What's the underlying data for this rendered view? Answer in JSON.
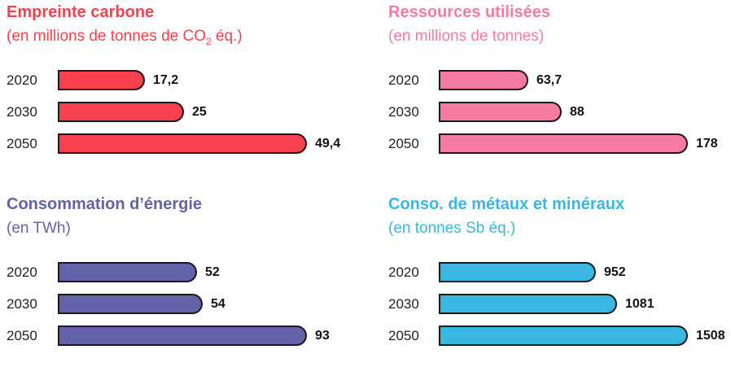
{
  "chart_data": [
    {
      "type": "bar",
      "orientation": "horizontal",
      "title": "Empreinte carbone",
      "subtitle_prefix": "(en millions de tonnes de CO",
      "subtitle_sub": "2",
      "subtitle_suffix": " éq.)",
      "color": "#f7414f",
      "categories": [
        "2020",
        "2030",
        "2050"
      ],
      "values": [
        17.2,
        25,
        49.4
      ],
      "value_labels": [
        "17,2",
        "25",
        "49,4"
      ]
    },
    {
      "type": "bar",
      "orientation": "horizontal",
      "title": "Ressources utilisées",
      "subtitle": "(en millions de tonnes)",
      "color": "#f57ba2",
      "categories": [
        "2020",
        "2030",
        "2050"
      ],
      "values": [
        63.7,
        88,
        178
      ],
      "value_labels": [
        "63,7",
        "88",
        "178"
      ]
    },
    {
      "type": "bar",
      "orientation": "horizontal",
      "title": "Consommation d’énergie",
      "subtitle": "(en TWh)",
      "color": "#6462a8",
      "categories": [
        "2020",
        "2030",
        "2050"
      ],
      "values": [
        52,
        54,
        93
      ],
      "value_labels": [
        "52",
        "54",
        "93"
      ]
    },
    {
      "type": "bar",
      "orientation": "horizontal",
      "title": "Conso. de métaux et minéraux",
      "subtitle": "(en tonnes Sb éq.)",
      "color": "#39b7e2",
      "categories": [
        "2020",
        "2030",
        "2050"
      ],
      "values": [
        952,
        1081,
        1508
      ],
      "value_labels": [
        "952",
        "1081",
        "1508"
      ]
    }
  ]
}
